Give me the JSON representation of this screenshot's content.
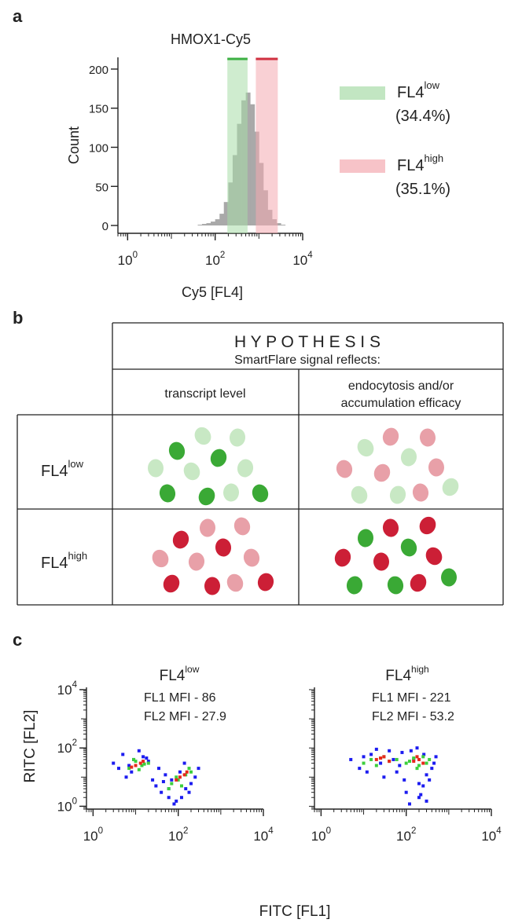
{
  "panel_labels": [
    "a",
    "b",
    "c"
  ],
  "chart_data": [
    {
      "type": "histogram",
      "title": "HMOX1-Cy5",
      "x_label": "Cy5 [FL4]",
      "y_label": "Count",
      "log_x": true,
      "xlim": [
        0.6,
        10000
      ],
      "ylim": [
        -10,
        215
      ],
      "xticks": [
        {
          "value": 1,
          "label": "10",
          "sup": "0"
        },
        {
          "value": 100,
          "label": "10",
          "sup": "2"
        },
        {
          "value": 10000,
          "label": "10",
          "sup": "4"
        }
      ],
      "yticks": [
        0,
        50,
        100,
        150,
        200
      ],
      "bins": [
        40,
        50,
        63,
        79,
        100,
        126,
        158,
        200,
        251,
        316,
        398,
        501,
        631,
        794,
        1000,
        1259,
        1585,
        1995,
        2512,
        3162,
        3981
      ],
      "counts": [
        1,
        2,
        3,
        5,
        8,
        15,
        30,
        55,
        90,
        130,
        160,
        170,
        155,
        120,
        80,
        45,
        20,
        8,
        3,
        1
      ],
      "color": "#a9a9a9",
      "gates": [
        {
          "label": "FL4",
          "sup": "low",
          "range": [
            190,
            550
          ],
          "color": "#a8dca8",
          "edge_color": "#3cb043",
          "value": 34.4,
          "value_label": "(34.4%)"
        },
        {
          "label": "FL4",
          "sup": "high",
          "range": [
            850,
            2700
          ],
          "color": "#f4a9b0",
          "edge_color": "#d03040",
          "value": 35.1,
          "value_label": "(35.1%)"
        }
      ]
    },
    {
      "type": "scatter",
      "title": "FL4",
      "title_sup": "low",
      "annotations": [
        "FL1 MFI - 86",
        "FL2 MFI - 27.9"
      ],
      "log_x": true,
      "log_y": true,
      "xlim": [
        0.7,
        10000
      ],
      "ylim": [
        0.8,
        12000
      ],
      "xticks": [
        {
          "value": 1,
          "label": "10",
          "sup": "0"
        },
        {
          "value": 100,
          "label": "10",
          "sup": "2"
        },
        {
          "value": 10000,
          "label": "10",
          "sup": "4"
        }
      ],
      "yticks": [
        {
          "value": 1,
          "label": "10",
          "sup": "0"
        },
        {
          "value": 100,
          "label": "10",
          "sup": "2"
        },
        {
          "value": 10000,
          "label": "10",
          "sup": "4"
        }
      ],
      "series": [
        {
          "color": "#1c1cf0",
          "x": [
            3,
            5,
            8,
            15,
            25,
            6,
            12,
            4,
            20,
            40,
            60,
            90,
            150,
            250,
            300,
            70,
            120,
            200,
            50,
            35,
            9,
            18,
            80,
            110,
            180,
            30,
            7,
            45,
            140,
            60
          ],
          "values": [
            30,
            60,
            15,
            50,
            8,
            10,
            80,
            20,
            35,
            3,
            2,
            1.5,
            4,
            10,
            20,
            8,
            2,
            6,
            12,
            20,
            40,
            45,
            1.2,
            15,
            3,
            5,
            25,
            7,
            30,
            4
          ]
        },
        {
          "color": "#3ccf3c",
          "x": [
            7,
            10,
            14,
            20,
            9,
            70,
            100,
            150,
            200,
            60,
            120,
            12,
            16,
            90,
            180
          ],
          "values": [
            20,
            35,
            25,
            30,
            40,
            6,
            8,
            12,
            15,
            4,
            5,
            18,
            28,
            10,
            20
          ]
        },
        {
          "color": "#e8281c",
          "x": [
            10,
            13,
            8,
            15,
            110,
            140,
            90,
            160
          ],
          "values": [
            25,
            30,
            22,
            35,
            10,
            12,
            8,
            15
          ]
        }
      ]
    },
    {
      "type": "scatter",
      "title": "FL4",
      "title_sup": "high",
      "annotations": [
        "FL1 MFI - 221",
        "FL2 MFI - 53.2"
      ],
      "log_x": true,
      "log_y": true,
      "xlim": [
        0.7,
        10000
      ],
      "ylim": [
        0.8,
        12000
      ],
      "xticks": [
        {
          "value": 1,
          "label": "10",
          "sup": "0"
        },
        {
          "value": 100,
          "label": "10",
          "sup": "2"
        },
        {
          "value": 10000,
          "label": "10",
          "sup": "4"
        }
      ],
      "series": [
        {
          "color": "#1c1cf0",
          "x": [
            5,
            8,
            15,
            25,
            40,
            60,
            100,
            200,
            300,
            400,
            500,
            80,
            150,
            250,
            120,
            30,
            12,
            10,
            350,
            180,
            70,
            200,
            220,
            260,
            20,
            50,
            450,
            130,
            90,
            300
          ],
          "values": [
            40,
            20,
            60,
            30,
            80,
            15,
            3,
            2,
            1.5,
            20,
            50,
            70,
            40,
            5,
            1.2,
            10,
            15,
            50,
            8,
            100,
            25,
            6,
            2.5,
            60,
            90,
            40,
            30,
            80,
            8,
            12
          ]
        },
        {
          "color": "#3ccf3c",
          "x": [
            10,
            15,
            20,
            30,
            40,
            60,
            100,
            150,
            200,
            300,
            250,
            180,
            25,
            120,
            350
          ],
          "values": [
            30,
            40,
            25,
            50,
            35,
            40,
            30,
            45,
            25,
            30,
            50,
            20,
            45,
            35,
            40
          ]
        },
        {
          "color": "#e8281c",
          "x": [
            20,
            30,
            40,
            25,
            150,
            200,
            250,
            180
          ],
          "values": [
            40,
            50,
            35,
            45,
            35,
            40,
            30,
            50
          ]
        }
      ]
    }
  ],
  "scatter_axes": {
    "x_label": "FITC [FL1]",
    "y_label": "RITC [FL2]"
  },
  "hypothesis_table": {
    "title": "H Y P O T H E S I S",
    "subtitle": "SmartFlare signal reflects:",
    "columns": [
      [
        "transcript level"
      ],
      [
        "endocytosis and/or",
        "accumulation efficacy"
      ]
    ],
    "rows": [
      {
        "label": "FL4",
        "sup": "low"
      },
      {
        "label": "FL4",
        "sup": "high"
      }
    ]
  }
}
